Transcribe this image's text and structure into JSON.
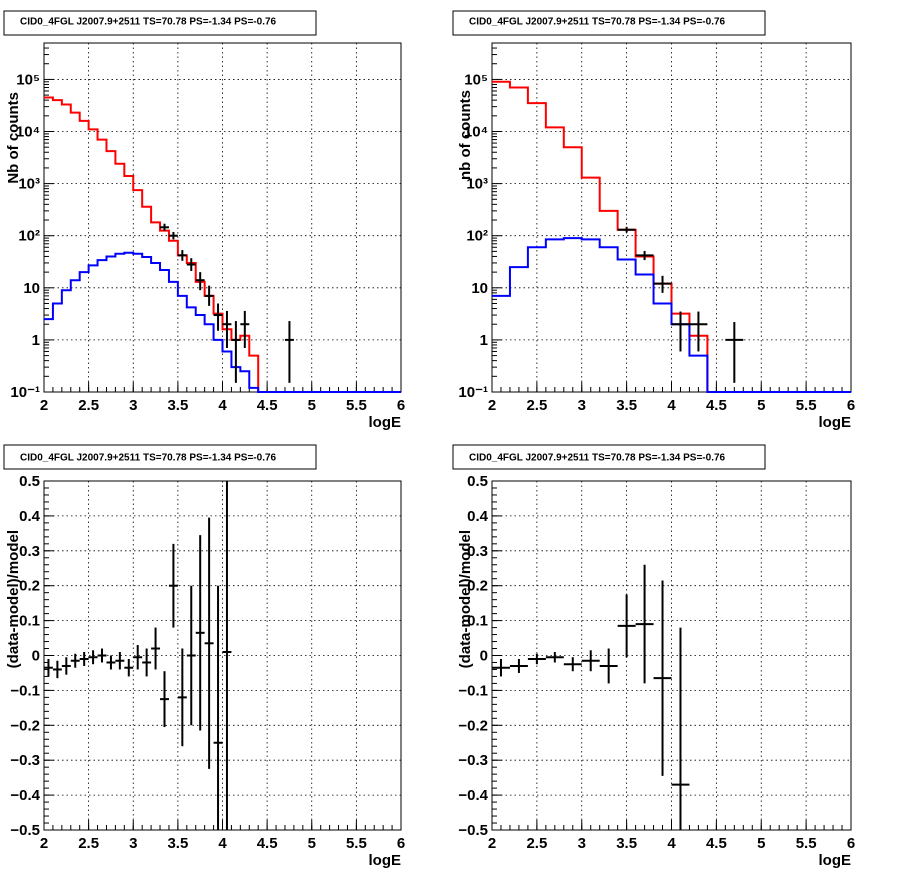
{
  "chart_data": [
    {
      "type": "line",
      "panel": "top-left",
      "title": "CID0_4FGL J2007.9+2511 TS=70.78 PS=-1.34 PS=-0.76",
      "xlabel": "logE",
      "ylabel": "Nb of counts",
      "xlim": [
        2,
        6
      ],
      "ylim": [
        0.1,
        500000
      ],
      "yscale": "log",
      "grid": true,
      "x_ticks": [
        "2",
        "2.5",
        "3",
        "3.5",
        "4",
        "4.5",
        "5",
        "5.5",
        "6"
      ],
      "y_ticks": [
        "10⁻¹",
        "1",
        "10",
        "10²",
        "10³",
        "10⁴",
        "10⁵"
      ],
      "bin_width": 0.1,
      "series": [
        {
          "color": "#ff0000",
          "style": "step",
          "bins": [
            2.0,
            2.1,
            2.2,
            2.3,
            2.4,
            2.5,
            2.6,
            2.7,
            2.8,
            2.9,
            3.0,
            3.1,
            3.2,
            3.3,
            3.4,
            3.5,
            3.6,
            3.7,
            3.8,
            3.9,
            4.0,
            4.1,
            4.2,
            4.3,
            4.4,
            4.5
          ],
          "values": [
            45000,
            40000,
            33000,
            23000,
            16000,
            11000,
            7000,
            4200,
            2400,
            1400,
            750,
            360,
            180,
            125,
            80,
            42,
            30,
            13,
            7,
            3.2,
            1.6,
            1.0,
            1.2,
            0.5,
            0.1,
            0.1
          ]
        },
        {
          "color": "#0000ff",
          "style": "step",
          "bins": [
            2.0,
            2.1,
            2.2,
            2.3,
            2.4,
            2.5,
            2.6,
            2.7,
            2.8,
            2.9,
            3.0,
            3.1,
            3.2,
            3.3,
            3.4,
            3.5,
            3.6,
            3.7,
            3.8,
            3.9,
            4.0,
            4.1,
            4.2,
            4.3,
            4.4,
            4.5,
            5.0,
            5.5
          ],
          "values": [
            2.5,
            5,
            9,
            14,
            20,
            27,
            34,
            40,
            45,
            47,
            45,
            39,
            30,
            22,
            13,
            7,
            4.2,
            3,
            2,
            1,
            0.6,
            0.3,
            0.25,
            0.12,
            0.1,
            0.1,
            0.1,
            0.1
          ]
        }
      ],
      "points": [
        {
          "x": 3.35,
          "y": 145,
          "lo": 125,
          "hi": 170
        },
        {
          "x": 3.45,
          "y": 100,
          "lo": 85,
          "hi": 118
        },
        {
          "x": 3.55,
          "y": 42,
          "lo": 33,
          "hi": 53
        },
        {
          "x": 3.65,
          "y": 28,
          "lo": 21,
          "hi": 37
        },
        {
          "x": 3.75,
          "y": 14,
          "lo": 9,
          "hi": 20
        },
        {
          "x": 3.85,
          "y": 7,
          "lo": 4.5,
          "hi": 11
        },
        {
          "x": 3.95,
          "y": 3,
          "lo": 1.5,
          "hi": 5
        },
        {
          "x": 4.05,
          "y": 2,
          "lo": 0.7,
          "hi": 3.6
        },
        {
          "x": 4.15,
          "y": 1,
          "lo": 0.15,
          "hi": 2.3
        },
        {
          "x": 4.25,
          "y": 2,
          "lo": 0.7,
          "hi": 3.6
        },
        {
          "x": 4.75,
          "y": 1,
          "lo": 0.15,
          "hi": 2.3
        }
      ]
    },
    {
      "type": "line",
      "panel": "top-right",
      "title": "CID0_4FGL J2007.9+2511 TS=70.78 PS=-1.34 PS=-0.76",
      "xlabel": "logE",
      "ylabel": "nb of counts",
      "xlim": [
        2,
        6
      ],
      "ylim": [
        0.1,
        500000
      ],
      "yscale": "log",
      "grid": true,
      "x_ticks": [
        "2",
        "2.5",
        "3",
        "3.5",
        "4",
        "4.5",
        "5",
        "5.5",
        "6"
      ],
      "y_ticks": [
        "10⁻¹",
        "1",
        "10",
        "10²",
        "10³",
        "10⁴",
        "10⁵"
      ],
      "bin_width": 0.2,
      "series": [
        {
          "color": "#ff0000",
          "style": "step",
          "bins": [
            2.0,
            2.2,
            2.4,
            2.6,
            2.8,
            3.0,
            3.2,
            3.4,
            3.6,
            3.8,
            4.0,
            4.2,
            4.4
          ],
          "values": [
            90000,
            70000,
            35000,
            12000,
            5000,
            1300,
            300,
            130,
            40,
            12,
            3.2,
            1.2,
            0.1
          ]
        },
        {
          "color": "#0000ff",
          "style": "step",
          "bins": [
            2.0,
            2.2,
            2.4,
            2.6,
            2.8,
            3.0,
            3.2,
            3.4,
            3.6,
            3.8,
            4.0,
            4.2,
            4.4,
            4.6,
            5.0
          ],
          "values": [
            7,
            25,
            60,
            85,
            90,
            85,
            60,
            35,
            18,
            5,
            2,
            0.5,
            0.1,
            0.1,
            0.1
          ]
        }
      ],
      "points": [
        {
          "x": 3.5,
          "y": 130,
          "lo": 115,
          "hi": 148
        },
        {
          "x": 3.7,
          "y": 42,
          "lo": 34,
          "hi": 51
        },
        {
          "x": 3.9,
          "y": 12,
          "lo": 8,
          "hi": 17
        },
        {
          "x": 4.1,
          "y": 2,
          "lo": 0.6,
          "hi": 3.5
        },
        {
          "x": 4.3,
          "y": 2,
          "lo": 0.6,
          "hi": 3.5
        },
        {
          "x": 4.7,
          "y": 1,
          "lo": 0.15,
          "hi": 2.2
        }
      ]
    },
    {
      "type": "scatter",
      "panel": "bottom-left",
      "title": "CID0_4FGL J2007.9+2511 TS=70.78 PS=-1.34 PS=-0.76",
      "xlabel": "logE",
      "ylabel": "(data-model)/model",
      "xlim": [
        2,
        6
      ],
      "ylim": [
        -0.5,
        0.5
      ],
      "grid": true,
      "x_ticks": [
        "2",
        "2.5",
        "3",
        "3.5",
        "4",
        "4.5",
        "5",
        "5.5",
        "6"
      ],
      "y_ticks": [
        "−0.5",
        "−0.4",
        "−0.3",
        "−0.2",
        "−0.1",
        "0",
        "0.1",
        "0.2",
        "0.3",
        "0.4",
        "0.5"
      ],
      "xerr": 0.05,
      "points": [
        {
          "x": 2.05,
          "y": -0.035,
          "err": 0.025
        },
        {
          "x": 2.15,
          "y": -0.04,
          "err": 0.025
        },
        {
          "x": 2.25,
          "y": -0.03,
          "err": 0.025
        },
        {
          "x": 2.35,
          "y": -0.015,
          "err": 0.02
        },
        {
          "x": 2.45,
          "y": -0.01,
          "err": 0.02
        },
        {
          "x": 2.55,
          "y": -0.005,
          "err": 0.02
        },
        {
          "x": 2.65,
          "y": 0.0,
          "err": 0.02
        },
        {
          "x": 2.75,
          "y": -0.02,
          "err": 0.02
        },
        {
          "x": 2.85,
          "y": -0.015,
          "err": 0.025
        },
        {
          "x": 2.95,
          "y": -0.035,
          "err": 0.025
        },
        {
          "x": 3.05,
          "y": -0.005,
          "err": 0.035
        },
        {
          "x": 3.15,
          "y": -0.02,
          "err": 0.04
        },
        {
          "x": 3.25,
          "y": 0.02,
          "err": 0.06
        },
        {
          "x": 3.35,
          "y": -0.125,
          "err": 0.08
        },
        {
          "x": 3.45,
          "y": 0.2,
          "err": 0.12
        },
        {
          "x": 3.55,
          "y": -0.12,
          "err": 0.14
        },
        {
          "x": 3.65,
          "y": 0.0,
          "err": 0.2
        },
        {
          "x": 3.75,
          "y": 0.065,
          "err": 0.28
        },
        {
          "x": 3.85,
          "y": 0.035,
          "err": 0.36
        },
        {
          "x": 3.95,
          "y": -0.25,
          "err": 0.45
        },
        {
          "x": 4.05,
          "y": 0.01,
          "err": 0.6
        }
      ]
    },
    {
      "type": "scatter",
      "panel": "bottom-right",
      "title": "CID0_4FGL J2007.9+2511 TS=70.78 PS=-1.34 PS=-0.76",
      "xlabel": "logE",
      "ylabel": "(data-model)/model",
      "xlim": [
        2,
        6
      ],
      "ylim": [
        -0.5,
        0.5
      ],
      "grid": true,
      "x_ticks": [
        "2",
        "2.5",
        "3",
        "3.5",
        "4",
        "4.5",
        "5",
        "5.5",
        "6"
      ],
      "y_ticks": [
        "−0.5",
        "−0.4",
        "−0.3",
        "−0.2",
        "−0.1",
        "0",
        "0.1",
        "0.2",
        "0.3",
        "0.4",
        "0.5"
      ],
      "xerr": 0.1,
      "points": [
        {
          "x": 2.1,
          "y": -0.035,
          "err": 0.025
        },
        {
          "x": 2.3,
          "y": -0.03,
          "err": 0.02
        },
        {
          "x": 2.5,
          "y": -0.01,
          "err": 0.015
        },
        {
          "x": 2.7,
          "y": -0.005,
          "err": 0.015
        },
        {
          "x": 2.9,
          "y": -0.025,
          "err": 0.02
        },
        {
          "x": 3.1,
          "y": -0.015,
          "err": 0.03
        },
        {
          "x": 3.3,
          "y": -0.03,
          "err": 0.05
        },
        {
          "x": 3.5,
          "y": 0.085,
          "err": 0.09
        },
        {
          "x": 3.7,
          "y": 0.09,
          "err": 0.17
        },
        {
          "x": 3.9,
          "y": -0.065,
          "err": 0.28
        },
        {
          "x": 4.1,
          "y": -0.37,
          "err": 0.45
        }
      ]
    }
  ]
}
